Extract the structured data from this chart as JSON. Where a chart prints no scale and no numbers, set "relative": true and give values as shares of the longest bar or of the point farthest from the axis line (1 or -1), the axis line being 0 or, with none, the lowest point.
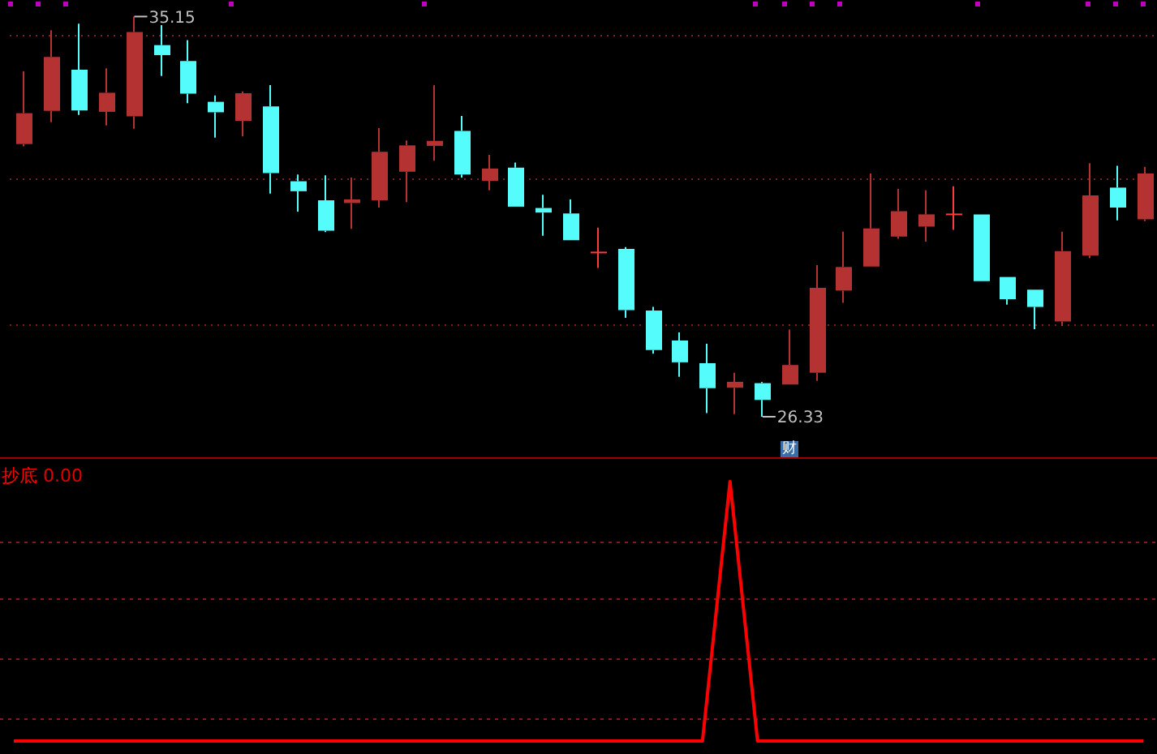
{
  "chart_data": [
    {
      "type": "candlestick",
      "categories": [
        null,
        null,
        null,
        null,
        null,
        null,
        null,
        null,
        null,
        null,
        null,
        null,
        null,
        null,
        null,
        null,
        null,
        null,
        null,
        null,
        null,
        null,
        null,
        null,
        null,
        null,
        null,
        null,
        null,
        null,
        null,
        null,
        null,
        null,
        null,
        null,
        null,
        null,
        null,
        null,
        null,
        null
      ],
      "ohlc": [
        [
          32.34,
          33.94,
          32.29,
          33.02
        ],
        [
          33.07,
          34.85,
          32.82,
          34.26
        ],
        [
          33.98,
          34.99,
          32.98,
          33.08
        ],
        [
          33.05,
          34.01,
          32.75,
          33.47
        ],
        [
          32.95,
          35.15,
          32.68,
          34.81
        ],
        [
          34.52,
          34.96,
          33.84,
          34.3
        ],
        [
          34.17,
          34.63,
          33.24,
          33.45
        ],
        [
          33.27,
          33.41,
          32.48,
          33.04
        ],
        [
          32.85,
          33.5,
          32.51,
          33.46
        ],
        [
          33.17,
          33.64,
          31.25,
          31.7
        ],
        [
          31.52,
          31.67,
          30.85,
          31.3
        ],
        [
          31.1,
          31.65,
          30.4,
          30.43
        ],
        [
          31.04,
          31.6,
          30.47,
          31.12
        ],
        [
          31.1,
          32.69,
          30.94,
          32.17
        ],
        [
          31.73,
          32.42,
          31.06,
          32.31
        ],
        [
          32.3,
          33.64,
          31.97,
          32.41
        ],
        [
          32.63,
          32.96,
          31.6,
          31.67
        ],
        [
          31.53,
          32.1,
          31.32,
          31.8
        ],
        [
          31.82,
          31.93,
          30.96,
          30.96
        ],
        [
          30.93,
          31.22,
          30.32,
          30.83
        ],
        [
          30.81,
          31.12,
          30.22,
          30.22
        ],
        [
          29.95,
          30.5,
          29.61,
          29.95
        ],
        [
          30.03,
          30.07,
          28.51,
          28.68
        ],
        [
          28.67,
          28.75,
          27.72,
          27.8
        ],
        [
          28.01,
          28.19,
          27.21,
          27.53
        ],
        [
          27.51,
          27.94,
          26.41,
          26.96
        ],
        [
          26.97,
          27.3,
          26.39,
          27.1
        ],
        [
          27.07,
          27.1,
          26.33,
          26.7
        ],
        [
          27.04,
          28.25,
          27.04,
          27.47
        ],
        [
          27.3,
          29.67,
          27.12,
          29.17
        ],
        [
          29.11,
          30.41,
          28.84,
          29.63
        ],
        [
          29.64,
          31.69,
          29.64,
          30.48
        ],
        [
          30.3,
          31.35,
          30.25,
          30.86
        ],
        [
          30.52,
          31.32,
          30.19,
          30.79
        ],
        [
          30.79,
          31.41,
          30.45,
          30.79
        ],
        [
          30.79,
          30.79,
          29.32,
          29.32
        ],
        [
          29.41,
          29.41,
          28.8,
          28.92
        ],
        [
          29.13,
          29.13,
          28.26,
          28.75
        ],
        [
          28.43,
          30.41,
          28.33,
          29.98
        ],
        [
          29.88,
          31.92,
          29.83,
          31.21
        ],
        [
          31.38,
          31.86,
          30.66,
          30.94
        ],
        [
          30.68,
          31.84,
          30.64,
          31.69
        ]
      ],
      "colors": [
        "#b43232",
        "#b43232",
        "#54fcfc",
        "#b43232",
        "#b43232",
        "#54fcfc",
        "#54fcfc",
        "#54fcfc",
        "#b43232",
        "#54fcfc",
        "#54fcfc",
        "#54fcfc",
        "#b43232",
        "#b43232",
        "#b43232",
        "#b43232",
        "#54fcfc",
        "#b43232",
        "#54fcfc",
        "#54fcfc",
        "#54fcfc",
        "#ff3c3c",
        "#54fcfc",
        "#54fcfc",
        "#54fcfc",
        "#54fcfc",
        "#b43232",
        "#54fcfc",
        "#b43232",
        "#b43232",
        "#b43232",
        "#b43232",
        "#b43232",
        "#b43232",
        "#ff3c3c",
        "#54fcfc",
        "#54fcfc",
        "#54fcfc",
        "#b43232",
        "#b43232",
        "#54fcfc",
        "#b43232"
      ],
      "yticks": [
        {
          "value": 34.73,
          "label": null
        },
        {
          "value": 31.56,
          "label": null
        },
        {
          "value": 28.35,
          "label": null
        }
      ],
      "grid": "y",
      "annotations": [
        "35.15",
        "26.33",
        "财"
      ]
    },
    {
      "type": "line",
      "relative": true,
      "categories": [
        null,
        null,
        null,
        null,
        null,
        null,
        null,
        null,
        null,
        null,
        null,
        null,
        null,
        null,
        null,
        null,
        null,
        null,
        null,
        null,
        null,
        null,
        null,
        null,
        null,
        null,
        null,
        null,
        null,
        null,
        null,
        null,
        null,
        null,
        null,
        null,
        null,
        null,
        null,
        null,
        null,
        null
      ],
      "series": [
        {
          "name": "抄底",
          "color": "#ff0000",
          "values": [
            0,
            0,
            0,
            0,
            0,
            0,
            0,
            0,
            0,
            0,
            0,
            0,
            0,
            0,
            0,
            0,
            0,
            0,
            0,
            0,
            0,
            0,
            0,
            0,
            0,
            0,
            1,
            0,
            0,
            0,
            0,
            0,
            0,
            0,
            0,
            0,
            0,
            0,
            0,
            0,
            0,
            0
          ]
        }
      ],
      "ref_lines": [
        {
          "axis": "y",
          "value": 0.77,
          "color": "#8a1a1a",
          "line_style": "dotted"
        },
        {
          "axis": "y",
          "value": 0.55,
          "color": "#8a1a1a",
          "line_style": "dotted"
        },
        {
          "axis": "y",
          "value": 0.32,
          "color": "#8a1a1a",
          "line_style": "dotted"
        },
        {
          "axis": "y",
          "value": 0.09,
          "color": "#8a1a1a",
          "line_style": "dotted"
        }
      ],
      "legend": "top left",
      "annotations": [
        "0.00"
      ]
    }
  ]
}
